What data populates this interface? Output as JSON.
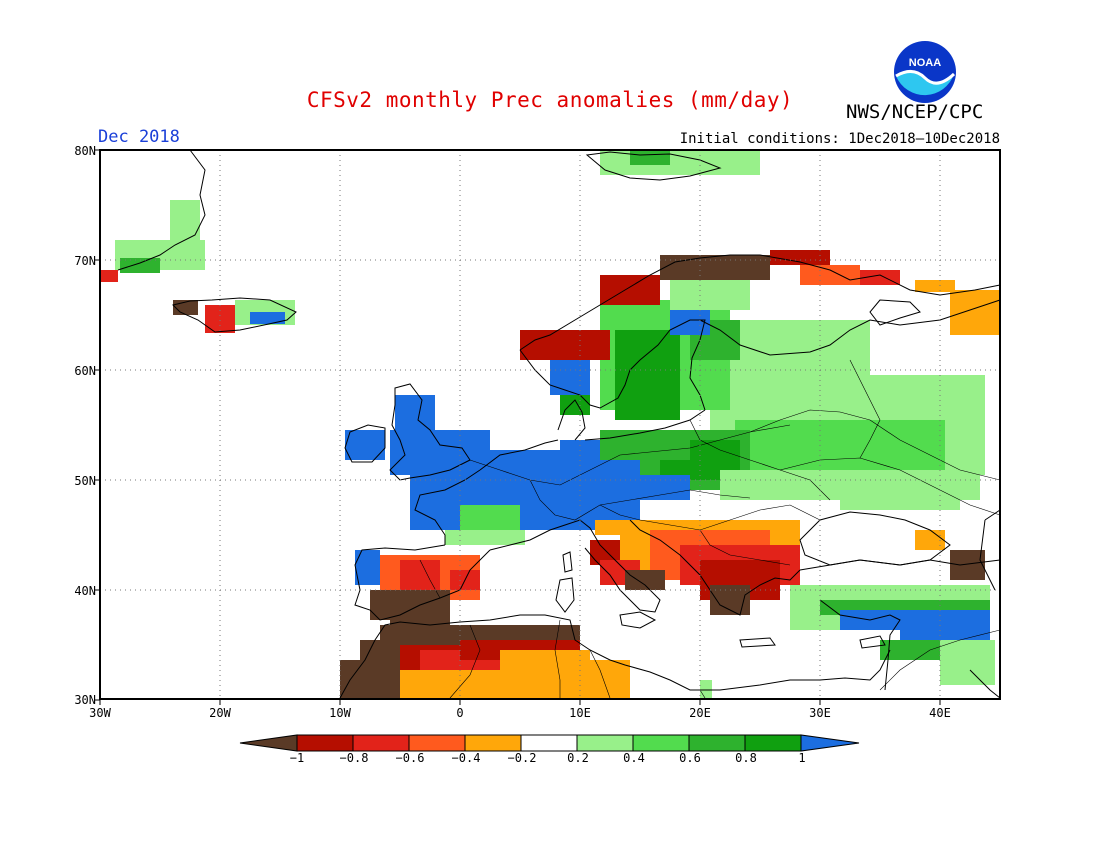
{
  "header": {
    "title": "CFSv2 monthly Prec anomalies (mm/day)",
    "agency": "NWS/NCEP/CPC",
    "logo_text": "NOAA",
    "month": "Dec 2018",
    "initial_conditions": "Initial conditions: 1Dec2018—10Dec2018"
  },
  "axes": {
    "lat_labels": [
      "80N",
      "70N",
      "60N",
      "50N",
      "40N",
      "30N"
    ],
    "lon_labels": [
      "30W",
      "20W",
      "10W",
      "0",
      "10E",
      "20E",
      "30E",
      "40E"
    ]
  },
  "colorbar": {
    "tick_labels": [
      "−1",
      "−0.8",
      "−0.6",
      "−0.4",
      "−0.2",
      "0.2",
      "0.4",
      "0.6",
      "0.8",
      "1"
    ],
    "colors": [
      "#5a3a26",
      "#b50e00",
      "#e2231a",
      "#ff5a1e",
      "#ffa70a",
      "#ffffff",
      "#98f08a",
      "#52dc4e",
      "#2eb22e",
      "#10a010",
      "#1c6ee0"
    ]
  },
  "colors": {
    "title": "#e00000",
    "month": "#1a3fd8",
    "logo_blue": "#0a36c8",
    "logo_cyan": "#2ec7f0"
  }
}
